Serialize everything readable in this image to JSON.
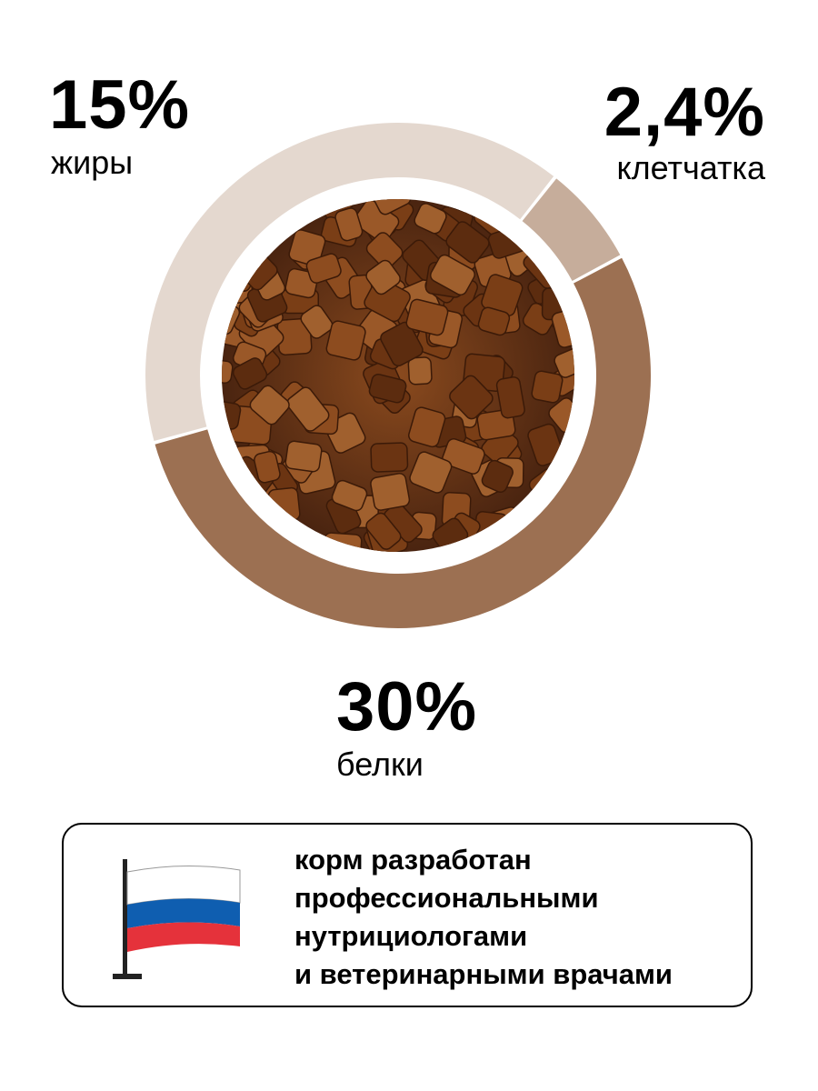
{
  "chart_data": {
    "type": "pie",
    "style": "donut",
    "categories": [
      "жиры",
      "клетчатка",
      "белки"
    ],
    "values": [
      15,
      2.4,
      30
    ],
    "value_labels": [
      "15%",
      "2,4%",
      "30%"
    ],
    "colors": [
      "#e4d8cf",
      "#c6ad9b",
      "#9c7052"
    ]
  },
  "labels": {
    "fat": {
      "value": "15%",
      "name": "жиры"
    },
    "fiber": {
      "value": "2,4%",
      "name": "клетчатка"
    },
    "protein": {
      "value": "30%",
      "name": "белки"
    }
  },
  "info_box": {
    "lines": [
      "корм разработан",
      "профессиональными",
      "нутрициологами",
      "и ветеринарными врачами"
    ],
    "icon": "russian-flag-icon",
    "flag_colors": [
      "#ffffff",
      "#0f5eb0",
      "#e5323b"
    ]
  }
}
